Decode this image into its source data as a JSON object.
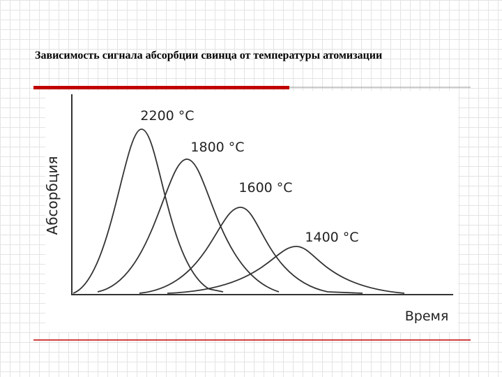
{
  "slide": {
    "title": "Зависимость сигнала абсорбции свинца от температуры атомизации",
    "figure": {
      "y_label": "Абсорбция",
      "x_label": "Время",
      "curve_labels": [
        "2200 °C",
        "1800 °C",
        "1600 °C",
        "1400 °C"
      ]
    }
  }
}
